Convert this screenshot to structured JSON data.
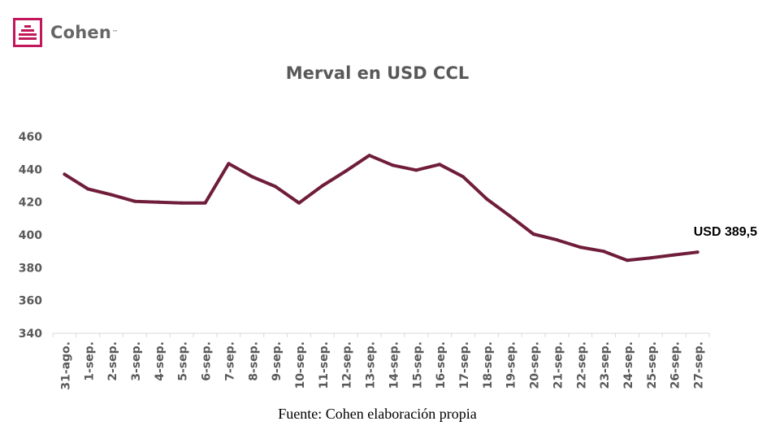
{
  "brand": {
    "name": "Cohen",
    "tm": "™",
    "color": "#c2185b",
    "icon": "bank-building-icon"
  },
  "chart_data": {
    "type": "line",
    "title": "Merval en USD CCL",
    "xlabel": "",
    "ylabel": "",
    "categories": [
      "31-ago.",
      "1-sep.",
      "2-sep.",
      "3-sep.",
      "4-sep.",
      "5-sep.",
      "6-sep.",
      "7-sep.",
      "8-sep.",
      "9-sep.",
      "10-sep.",
      "11-sep.",
      "12-sep.",
      "13-sep.",
      "14-sep.",
      "15-sep.",
      "16-sep.",
      "17-sep.",
      "18-sep.",
      "19-sep.",
      "20-sep.",
      "21-sep.",
      "22-sep.",
      "23-sep.",
      "24-sep.",
      "25-sep.",
      "26-sep.",
      "27-sep."
    ],
    "series": [
      {
        "values": [
          437,
          428,
          424.5,
          420.5,
          420,
          419.5,
          419.5,
          443.5,
          435.5,
          429.5,
          419.5,
          430,
          439,
          448.5,
          442.5,
          439.5,
          443,
          435.5,
          422,
          411.5,
          400.5,
          397,
          392.5,
          390,
          384.5,
          386,
          387.8,
          389.5
        ],
        "color": "#6f1d3b"
      }
    ],
    "ylim": [
      340,
      460
    ],
    "yticks": [
      340,
      360,
      380,
      400,
      420,
      440,
      460
    ],
    "grid": false,
    "legend": "none",
    "annotations": [
      {
        "category": "27-sep.",
        "text": "USD 389,5"
      }
    ]
  },
  "source": "Fuente: Cohen elaboración propia"
}
